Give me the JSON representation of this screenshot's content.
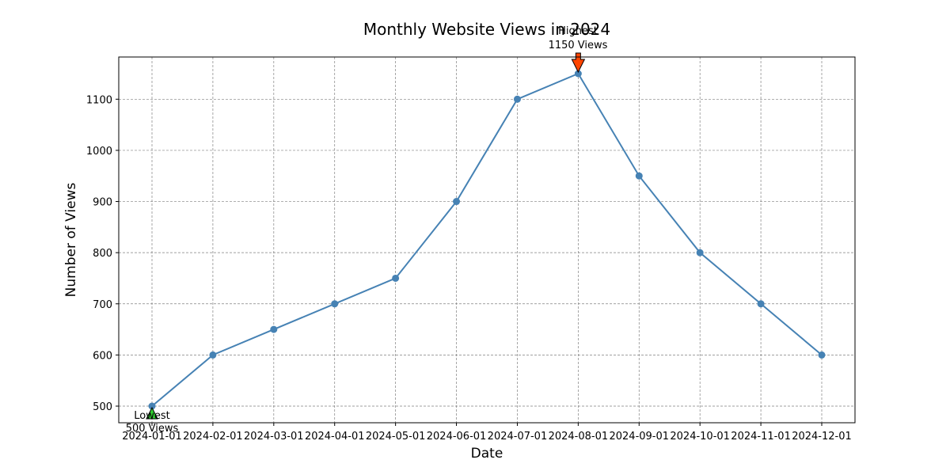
{
  "chart_data": {
    "type": "line",
    "title": "Monthly Website Views in 2024",
    "xlabel": "Date",
    "ylabel": "Number of Views",
    "categories": [
      "2024-01-01",
      "2024-02-01",
      "2024-03-01",
      "2024-04-01",
      "2024-05-01",
      "2024-06-01",
      "2024-07-01",
      "2024-08-01",
      "2024-09-01",
      "2024-10-01",
      "2024-11-01",
      "2024-12-01"
    ],
    "series": [
      {
        "values": [
          500,
          600,
          650,
          700,
          750,
          900,
          1100,
          1150,
          950,
          800,
          700,
          600
        ]
      }
    ],
    "yticks": [
      500,
      600,
      700,
      800,
      900,
      1000,
      1100
    ],
    "ylim": [
      467.5,
      1182.5
    ],
    "grid": true,
    "colors": {
      "line": "#4682b4",
      "grid": "#808080",
      "highest_marker": "#ff4500",
      "lowest_marker": "#32cd32"
    },
    "annotations": {
      "highest": {
        "label": "Highest",
        "value_text": "1150 Views",
        "x": "2024-08-01",
        "y": 1150
      },
      "lowest": {
        "label": "Lowest",
        "value_text": "500 Views",
        "x": "2024-01-01",
        "y": 500
      }
    }
  }
}
